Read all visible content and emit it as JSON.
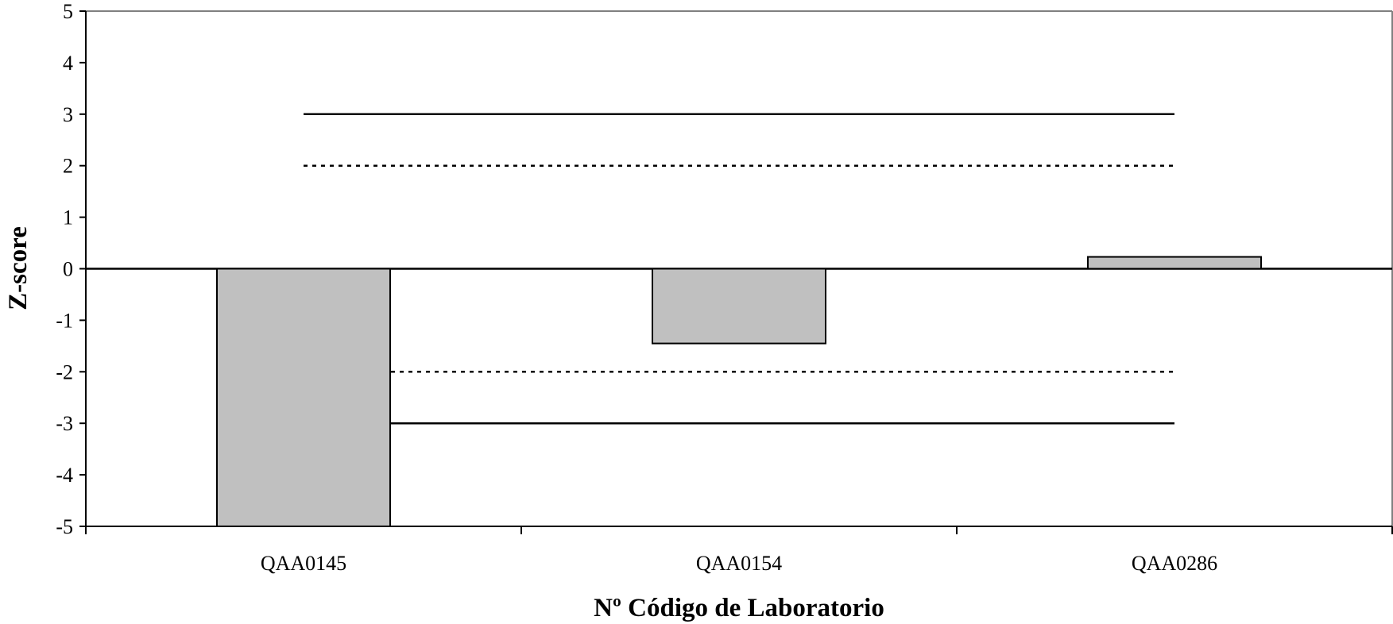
{
  "chart_data": {
    "type": "bar",
    "title": "",
    "xlabel": "Nº Código de Laboratorio",
    "ylabel": "Z-score",
    "ylim": [
      -5,
      5
    ],
    "yticks": [
      5,
      4,
      3,
      2,
      1,
      0,
      -1,
      -2,
      -3,
      -4,
      -5
    ],
    "categories": [
      "QAA0145",
      "QAA0154",
      "QAA0286"
    ],
    "series": [
      {
        "values": [
          -5,
          -1.45,
          0.23
        ],
        "color": "#c0c0c0"
      }
    ],
    "reference_lines": [
      {
        "y": 3,
        "style": "solid"
      },
      {
        "y": 2,
        "style": "dotted"
      },
      {
        "y": 0,
        "style": "solid"
      },
      {
        "y": -2,
        "style": "dotted"
      },
      {
        "y": -3,
        "style": "solid"
      }
    ],
    "grid": false,
    "legend": "none"
  }
}
